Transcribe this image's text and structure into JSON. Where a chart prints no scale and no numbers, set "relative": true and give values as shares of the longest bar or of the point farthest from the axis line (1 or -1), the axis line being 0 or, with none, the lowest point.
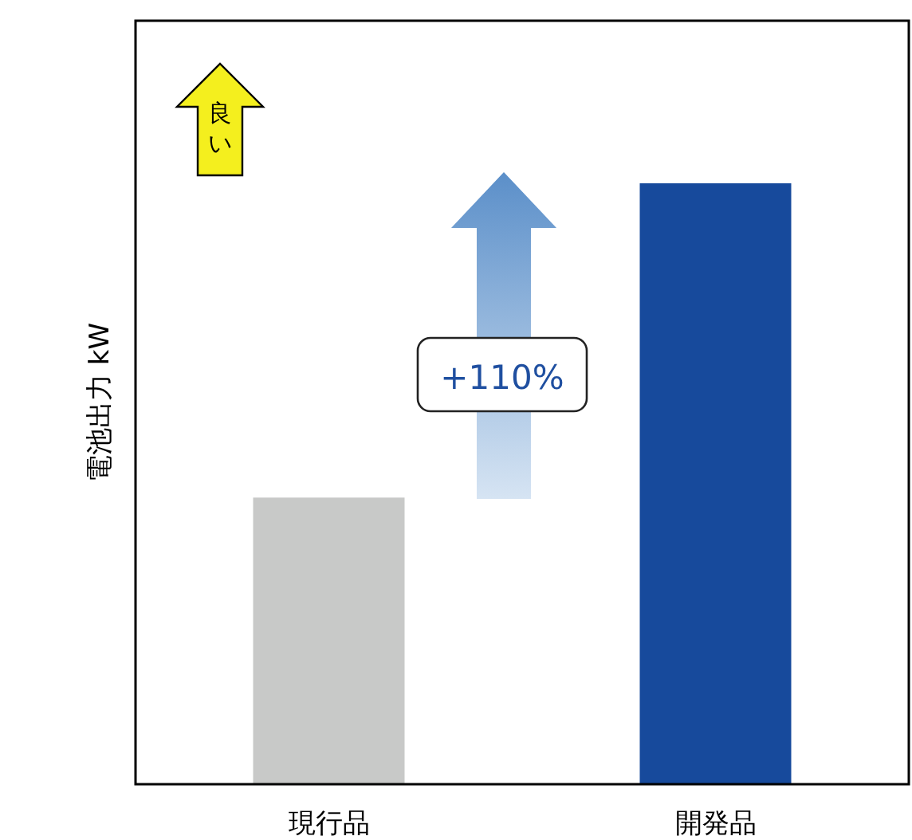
{
  "chart_data": {
    "type": "bar",
    "relative": true,
    "categories": [
      "現行品",
      "開発品"
    ],
    "values": [
      0.477,
      1
    ],
    "colors": [
      "#c8c9c8",
      "#174a9c"
    ],
    "ylabel": "電池出力 kW",
    "annotations": [
      "良い",
      "+110%"
    ]
  }
}
